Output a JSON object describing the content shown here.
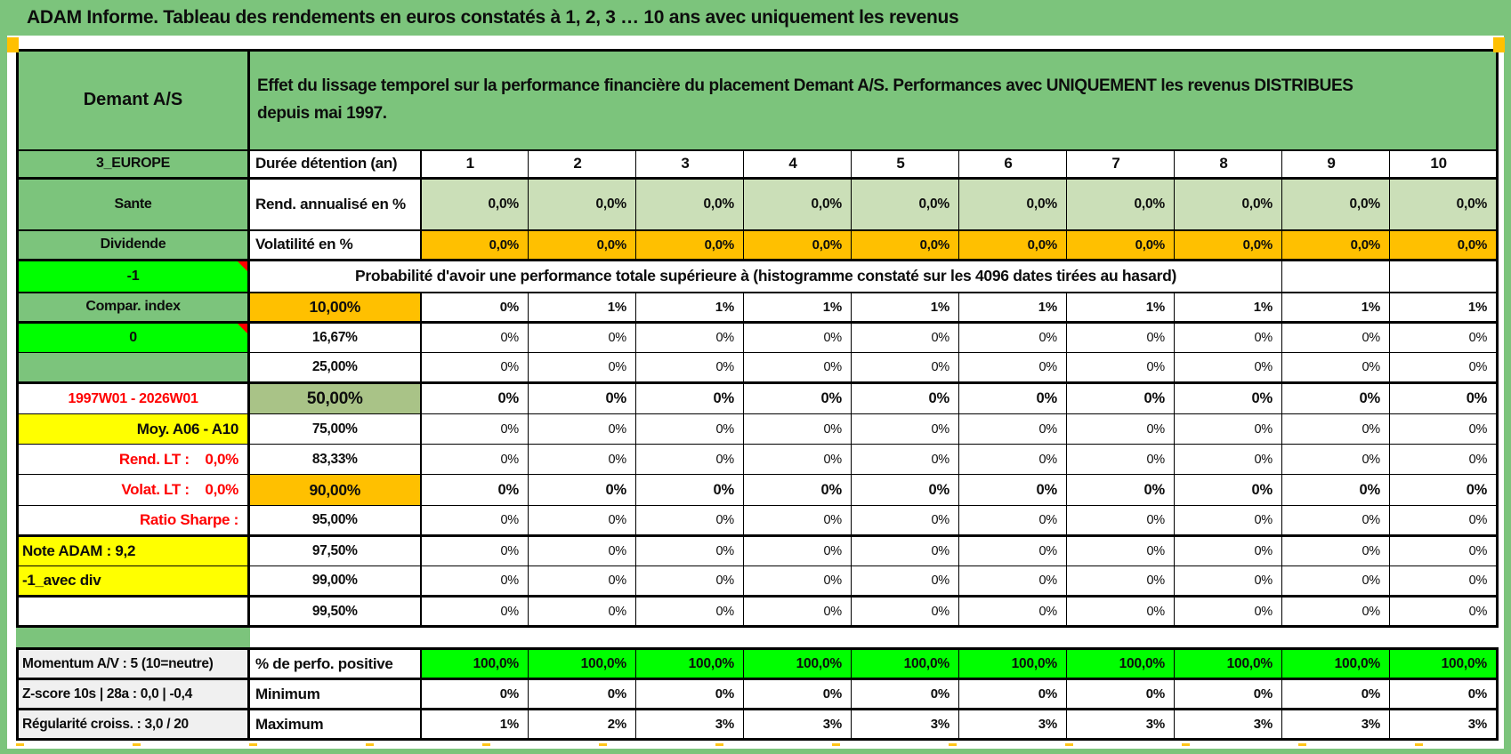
{
  "title": "ADAM Informe. Tableau des rendements en euros constatés à 1, 2, 3 … 10 ans avec uniquement les revenus",
  "colors": {
    "frame_green": "#7CC47C",
    "bright_green": "#00FF00",
    "sage_green": "#A9C387",
    "light_green": "#CBDFB8",
    "orange": "#FFC000",
    "yellow": "#FFFF00",
    "red_text": "#FF0000",
    "gray_label": "#F0F0F0"
  },
  "main_table": {
    "corner_title": "Demant A/S",
    "description": "Effet du lissage temporel sur la performance financière du placement Demant A/S. Performances avec UNIQUEMENT les revenus DISTRIBUES depuis mai 1997.",
    "rows": [
      {
        "side": "3_EUROPE",
        "side_style": "s-green",
        "mid": "Durée détention (an)",
        "mid_style": "m-label",
        "value_style": "v-colhead",
        "values": [
          "1",
          "2",
          "3",
          "4",
          "5",
          "6",
          "7",
          "8",
          "9",
          "10"
        ]
      },
      {
        "side": "Sante",
        "side_style": "s-green",
        "mid": "Rend. annualisé en %",
        "mid_style": "m-label",
        "value_style": "v-lgreen",
        "values": [
          "0,0%",
          "0,0%",
          "0,0%",
          "0,0%",
          "0,0%",
          "0,0%",
          "0,0%",
          "0,0%",
          "0,0%",
          "0,0%"
        ]
      },
      {
        "side": "Dividende",
        "side_style": "s-green",
        "mid": "Volatilité en %",
        "mid_style": "m-label",
        "value_style": "v-orange",
        "values": [
          "0,0%",
          "0,0%",
          "0,0%",
          "0,0%",
          "0,0%",
          "0,0%",
          "0,0%",
          "0,0%",
          "0,0%",
          "0,0%"
        ]
      },
      {
        "type": "banner",
        "side": "-1",
        "side_style": "s-bright note",
        "mid": "Probabilité d'avoir une performance totale supérieure à (histogramme constaté sur les 4096 dates tirées au hasard)"
      },
      {
        "side": "Compar. index",
        "side_style": "s-green",
        "mid": "10,00%",
        "mid_style": "m-orange",
        "value_style": "v-bold",
        "values": [
          "0%",
          "1%",
          "1%",
          "1%",
          "1%",
          "1%",
          "1%",
          "1%",
          "1%",
          "1%"
        ]
      },
      {
        "side": "0",
        "side_style": "s-bright note",
        "mid": "16,67%",
        "mid_style": "",
        "value_style": "v-light",
        "values": [
          "0%",
          "0%",
          "0%",
          "0%",
          "0%",
          "0%",
          "0%",
          "0%",
          "0%",
          "0%"
        ]
      },
      {
        "side": "",
        "side_style": "s-green",
        "mid": "25,00%",
        "mid_style": "",
        "value_style": "v-light",
        "values": [
          "0%",
          "0%",
          "0%",
          "0%",
          "0%",
          "0%",
          "0%",
          "0%",
          "0%",
          "0%"
        ]
      },
      {
        "side": "1997W01 - 2026W01",
        "side_style": "s-redc",
        "mid": "50,00%",
        "mid_style": "m-sage",
        "value_style": "v-big",
        "values": [
          "0%",
          "0%",
          "0%",
          "0%",
          "0%",
          "0%",
          "0%",
          "0%",
          "0%",
          "0%"
        ]
      },
      {
        "side": "Moy. A06 - A10",
        "side_style": "s-yellow-r",
        "mid": "75,00%",
        "mid_style": "",
        "value_style": "v-light",
        "values": [
          "0%",
          "0%",
          "0%",
          "0%",
          "0%",
          "0%",
          "0%",
          "0%",
          "0%",
          "0%"
        ]
      },
      {
        "side": "Rend. LT :    0,0%",
        "side_style": "s-red",
        "mid": "83,33%",
        "mid_style": "",
        "value_style": "v-light",
        "values": [
          "0%",
          "0%",
          "0%",
          "0%",
          "0%",
          "0%",
          "0%",
          "0%",
          "0%",
          "0%"
        ]
      },
      {
        "side": "Volat. LT :    0,0%",
        "side_style": "s-red",
        "mid": "90,00%",
        "mid_style": "m-orange",
        "value_style": "v-big",
        "values": [
          "0%",
          "0%",
          "0%",
          "0%",
          "0%",
          "0%",
          "0%",
          "0%",
          "0%",
          "0%"
        ]
      },
      {
        "side": "Ratio Sharpe :",
        "side_style": "s-red",
        "mid": "95,00%",
        "mid_style": "",
        "value_style": "v-light",
        "values": [
          "0%",
          "0%",
          "0%",
          "0%",
          "0%",
          "0%",
          "0%",
          "0%",
          "0%",
          "0%"
        ]
      },
      {
        "side": "Note ADAM : 9,2",
        "side_style": "s-yellow-l",
        "mid": "97,50%",
        "mid_style": "",
        "value_style": "v-light",
        "values": [
          "0%",
          "0%",
          "0%",
          "0%",
          "0%",
          "0%",
          "0%",
          "0%",
          "0%",
          "0%"
        ]
      },
      {
        "side": "-1_avec div",
        "side_style": "s-yellow-l",
        "mid": "99,00%",
        "mid_style": "",
        "value_style": "v-light",
        "values": [
          "0%",
          "0%",
          "0%",
          "0%",
          "0%",
          "0%",
          "0%",
          "0%",
          "0%",
          "0%"
        ]
      },
      {
        "side": "",
        "side_style": "",
        "mid": "99,50%",
        "mid_style": "",
        "value_style": "v-light",
        "values": [
          "0%",
          "0%",
          "0%",
          "0%",
          "0%",
          "0%",
          "0%",
          "0%",
          "0%",
          "0%"
        ]
      }
    ]
  },
  "bottom_table": {
    "rows": [
      {
        "side": "Momentum A/V : 5 (10=neutre)",
        "side_style": "s-gray",
        "mid": "% de perfo. positive",
        "mid_style": "m-label",
        "value_style": "v-bright",
        "values": [
          "100,0%",
          "100,0%",
          "100,0%",
          "100,0%",
          "100,0%",
          "100,0%",
          "100,0%",
          "100,0%",
          "100,0%",
          "100,0%"
        ]
      },
      {
        "side": "Z-score 10s | 28a : 0,0 | -0,4",
        "side_style": "s-gray",
        "mid": "Minimum",
        "mid_style": "m-label",
        "value_style": "v-bold",
        "values": [
          "0%",
          "0%",
          "0%",
          "0%",
          "0%",
          "0%",
          "0%",
          "0%",
          "0%",
          "0%"
        ]
      },
      {
        "side": "Régularité croiss. : 3,0 / 20",
        "side_style": "s-gray",
        "mid": "Maximum",
        "mid_style": "m-label",
        "value_style": "v-bold",
        "values": [
          "1%",
          "2%",
          "3%",
          "3%",
          "3%",
          "3%",
          "3%",
          "3%",
          "3%",
          "3%"
        ]
      }
    ]
  }
}
